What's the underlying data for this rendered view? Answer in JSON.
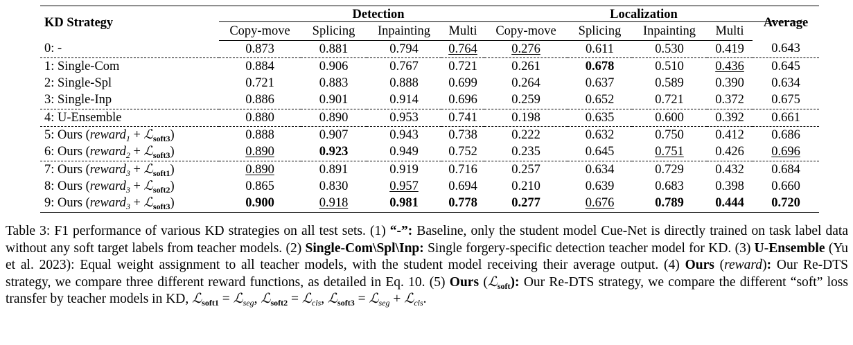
{
  "table": {
    "header": {
      "strategy": "KD Strategy",
      "detection": "Detection",
      "localization": "Localization",
      "average": "Average",
      "subcols": [
        "Copy-move",
        "Splicing",
        "Inpainting",
        "Multi",
        "Copy-move",
        "Splicing",
        "Inpainting",
        "Multi"
      ]
    },
    "rows": [
      {
        "label": "0: -",
        "values": [
          "0.873",
          "0.881",
          "0.794",
          "0.764",
          "0.276",
          "0.611",
          "0.530",
          "0.419",
          "0.643"
        ],
        "bold": [],
        "underline": [
          3,
          4
        ]
      },
      {
        "label": "1: Single-Com",
        "values": [
          "0.884",
          "0.906",
          "0.767",
          "0.721",
          "0.261",
          "0.678",
          "0.510",
          "0.436",
          "0.645"
        ],
        "bold": [
          5
        ],
        "underline": [
          7
        ]
      },
      {
        "label": "2: Single-Spl",
        "values": [
          "0.721",
          "0.883",
          "0.888",
          "0.699",
          "0.264",
          "0.637",
          "0.589",
          "0.390",
          "0.634"
        ],
        "bold": [],
        "underline": []
      },
      {
        "label": "3: Single-Inp",
        "values": [
          "0.886",
          "0.901",
          "0.914",
          "0.696",
          "0.259",
          "0.652",
          "0.721",
          "0.372",
          "0.675"
        ],
        "bold": [],
        "underline": []
      },
      {
        "label": "4: U-Ensemble",
        "values": [
          "0.880",
          "0.890",
          "0.953",
          "0.741",
          "0.198",
          "0.635",
          "0.600",
          "0.392",
          "0.661"
        ],
        "bold": [],
        "underline": []
      },
      {
        "label_prefix": "5: Ours (",
        "reward": "reward",
        "reward_sub": "1",
        "plus": " + ",
        "loss": "soft3",
        "label_suffix": ")",
        "values": [
          "0.888",
          "0.907",
          "0.943",
          "0.738",
          "0.222",
          "0.632",
          "0.750",
          "0.412",
          "0.686"
        ],
        "bold": [],
        "underline": []
      },
      {
        "label_prefix": "6: Ours (",
        "reward": "reward",
        "reward_sub": "2",
        "plus": " + ",
        "loss": "soft3",
        "label_suffix": ")",
        "values": [
          "0.890",
          "0.923",
          "0.949",
          "0.752",
          "0.235",
          "0.645",
          "0.751",
          "0.426",
          "0.696"
        ],
        "bold": [
          1
        ],
        "underline": [
          0,
          6,
          8
        ]
      },
      {
        "label_prefix": "7: Ours (",
        "reward": "reward",
        "reward_sub": "3",
        "plus": " + ",
        "loss": "soft1",
        "label_suffix": ")",
        "values": [
          "0.890",
          "0.891",
          "0.919",
          "0.716",
          "0.257",
          "0.634",
          "0.729",
          "0.432",
          "0.684"
        ],
        "bold": [],
        "underline": [
          0
        ]
      },
      {
        "label_prefix": "8: Ours (",
        "reward": "reward",
        "reward_sub": "3",
        "plus": " + ",
        "loss": "soft2",
        "label_suffix": ")",
        "values": [
          "0.865",
          "0.830",
          "0.957",
          "0.694",
          "0.210",
          "0.639",
          "0.683",
          "0.398",
          "0.660"
        ],
        "bold": [],
        "underline": [
          2
        ]
      },
      {
        "label_prefix": "9: Ours (",
        "reward": "reward",
        "reward_sub": "3",
        "plus": " + ",
        "loss": "soft3",
        "label_suffix": ")",
        "values": [
          "0.900",
          "0.918",
          "0.981",
          "0.778",
          "0.277",
          "0.676",
          "0.789",
          "0.444",
          "0.720"
        ],
        "bold": [
          0,
          2,
          3,
          4,
          6,
          7,
          8
        ],
        "underline": [
          1,
          5
        ]
      }
    ]
  },
  "caption": {
    "t1": "Table 3: F1 performance of various KD strategies on all test sets. (1) ",
    "b1": "“-”:",
    "t2": " Baseline, only the student model Cue-Net is directly trained on task label data without any soft target labels from teacher models. (2) ",
    "b2": "Single-Com\\Spl\\Inp:",
    "t3": " Single forgery-specific detection teacher model for KD. (3) ",
    "b3": "U-Ensemble",
    "t4": " (Yu et al. 2023): Equal weight assignment to all teacher models, with the student model receiving their average output. (4) ",
    "b4": "Ours",
    "t5": " (",
    "m5": "reward",
    "t5b": ")",
    "b5": ":",
    "t6": " Our Re-DTS strategy, we compare three different reward functions, as detailed in Eq. 10. (5) ",
    "b6": "Ours",
    "t7": " (",
    "m7": "soft",
    "t7b": "):",
    "t8": " Our Re-DTS strategy, we compare the different “soft” loss transfer by teacher models in KD, ",
    "l1": "soft1",
    "eq1": " = ",
    "r1": "seg",
    "c1": ", ",
    "l2": "soft2",
    "eq2": " = ",
    "r2": "cls",
    "c2": ", ",
    "l3": "soft3",
    "eq3": " = ",
    "r3a": "seg",
    "plus3": " + ",
    "r3b": "cls",
    "end": "."
  }
}
